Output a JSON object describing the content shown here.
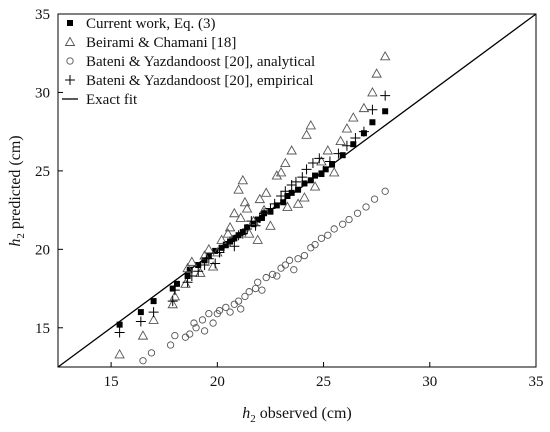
{
  "chart_data": {
    "type": "scatter",
    "xlabel_var": "h",
    "xlabel_sub": "2",
    "xlabel_rest": " observed (cm)",
    "ylabel_var": "h",
    "ylabel_sub": "2",
    "ylabel_rest": " predicted (cm)",
    "xlim": [
      12.5,
      35
    ],
    "ylim": [
      12.5,
      35
    ],
    "xticks": [
      15,
      20,
      25,
      30,
      35
    ],
    "yticks": [
      15,
      20,
      25,
      30,
      35
    ],
    "legend_position": "top-left",
    "series": [
      {
        "name": "Current work, Eq. (3)",
        "marker": "filled-square",
        "points": [
          [
            15.4,
            15.2
          ],
          [
            16.4,
            16.0
          ],
          [
            17.0,
            16.7
          ],
          [
            17.9,
            17.5
          ],
          [
            18.1,
            17.8
          ],
          [
            18.6,
            18.3
          ],
          [
            18.7,
            18.7
          ],
          [
            19.1,
            19.0
          ],
          [
            19.4,
            19.3
          ],
          [
            19.6,
            19.6
          ],
          [
            19.9,
            19.9
          ],
          [
            20.2,
            20.1
          ],
          [
            20.4,
            20.3
          ],
          [
            20.6,
            20.5
          ],
          [
            20.8,
            20.7
          ],
          [
            21.0,
            20.9
          ],
          [
            21.2,
            21.1
          ],
          [
            21.4,
            21.4
          ],
          [
            21.7,
            21.6
          ],
          [
            21.9,
            21.9
          ],
          [
            22.1,
            22.0
          ],
          [
            22.2,
            22.3
          ],
          [
            22.5,
            22.4
          ],
          [
            22.8,
            22.8
          ],
          [
            23.1,
            23.0
          ],
          [
            23.3,
            23.4
          ],
          [
            23.5,
            23.6
          ],
          [
            23.8,
            23.8
          ],
          [
            24.1,
            24.2
          ],
          [
            24.4,
            24.4
          ],
          [
            24.6,
            24.7
          ],
          [
            24.9,
            24.8
          ],
          [
            25.1,
            25.1
          ],
          [
            25.4,
            25.4
          ],
          [
            25.9,
            26.0
          ],
          [
            26.4,
            26.7
          ],
          [
            26.9,
            27.4
          ],
          [
            27.3,
            28.1
          ],
          [
            27.9,
            28.8
          ]
        ]
      },
      {
        "name": "Beirami & Chamani [18]",
        "marker": "open-triangle",
        "points": [
          [
            15.4,
            13.3
          ],
          [
            16.5,
            14.5
          ],
          [
            17.0,
            15.5
          ],
          [
            17.9,
            16.5
          ],
          [
            18.0,
            17.0
          ],
          [
            18.5,
            17.8
          ],
          [
            18.6,
            18.8
          ],
          [
            18.8,
            19.2
          ],
          [
            19.2,
            18.5
          ],
          [
            19.4,
            19.6
          ],
          [
            19.6,
            20.0
          ],
          [
            19.8,
            18.9
          ],
          [
            20.0,
            19.8
          ],
          [
            20.2,
            20.6
          ],
          [
            20.5,
            21.0
          ],
          [
            20.6,
            21.4
          ],
          [
            20.8,
            22.3
          ],
          [
            21.0,
            23.8
          ],
          [
            21.1,
            22.0
          ],
          [
            21.2,
            24.4
          ],
          [
            21.3,
            23.0
          ],
          [
            21.4,
            22.6
          ],
          [
            21.5,
            21.0
          ],
          [
            21.7,
            21.8
          ],
          [
            21.9,
            20.6
          ],
          [
            22.0,
            23.2
          ],
          [
            22.2,
            22.5
          ],
          [
            22.3,
            23.6
          ],
          [
            22.5,
            21.5
          ],
          [
            22.8,
            24.7
          ],
          [
            23.0,
            24.9
          ],
          [
            23.2,
            25.5
          ],
          [
            23.3,
            22.7
          ],
          [
            23.5,
            26.3
          ],
          [
            23.8,
            22.9
          ],
          [
            24.1,
            23.3
          ],
          [
            24.2,
            27.3
          ],
          [
            24.4,
            27.9
          ],
          [
            24.6,
            24.0
          ],
          [
            24.9,
            25.6
          ],
          [
            25.2,
            26.3
          ],
          [
            25.5,
            24.9
          ],
          [
            25.8,
            26.9
          ],
          [
            26.1,
            27.7
          ],
          [
            26.4,
            28.4
          ],
          [
            26.9,
            29.0
          ],
          [
            27.3,
            30.0
          ],
          [
            27.5,
            31.2
          ],
          [
            27.9,
            32.3
          ]
        ]
      },
      {
        "name": "Bateni & Yazdandoost [20], analytical",
        "marker": "open-circle",
        "points": [
          [
            16.5,
            12.9
          ],
          [
            16.9,
            13.4
          ],
          [
            17.8,
            13.9
          ],
          [
            18.0,
            14.5
          ],
          [
            18.5,
            14.4
          ],
          [
            18.7,
            14.6
          ],
          [
            18.9,
            15.3
          ],
          [
            19.0,
            15.0
          ],
          [
            19.3,
            15.5
          ],
          [
            19.4,
            14.8
          ],
          [
            19.6,
            15.9
          ],
          [
            19.8,
            15.3
          ],
          [
            20.0,
            15.9
          ],
          [
            20.1,
            16.1
          ],
          [
            20.4,
            16.3
          ],
          [
            20.6,
            16.0
          ],
          [
            20.8,
            16.5
          ],
          [
            21.0,
            16.7
          ],
          [
            21.1,
            16.2
          ],
          [
            21.3,
            17.0
          ],
          [
            21.5,
            17.3
          ],
          [
            21.8,
            17.5
          ],
          [
            21.9,
            17.9
          ],
          [
            22.1,
            17.4
          ],
          [
            22.3,
            18.2
          ],
          [
            22.6,
            18.4
          ],
          [
            22.8,
            18.3
          ],
          [
            23.0,
            18.8
          ],
          [
            23.2,
            19.0
          ],
          [
            23.4,
            19.3
          ],
          [
            23.6,
            18.7
          ],
          [
            23.8,
            19.4
          ],
          [
            24.1,
            19.6
          ],
          [
            24.4,
            20.1
          ],
          [
            24.6,
            20.3
          ],
          [
            24.9,
            20.7
          ],
          [
            25.2,
            20.9
          ],
          [
            25.5,
            21.3
          ],
          [
            25.9,
            21.6
          ],
          [
            26.2,
            21.9
          ],
          [
            26.6,
            22.3
          ],
          [
            27.0,
            22.7
          ],
          [
            27.4,
            23.2
          ],
          [
            27.9,
            23.7
          ]
        ]
      },
      {
        "name": "Bateni & Yazdandoost [20], empirical",
        "marker": "plus",
        "points": [
          [
            15.4,
            14.7
          ],
          [
            16.4,
            15.4
          ],
          [
            17.0,
            16.0
          ],
          [
            17.9,
            16.7
          ],
          [
            18.0,
            17.4
          ],
          [
            18.6,
            17.9
          ],
          [
            18.8,
            18.3
          ],
          [
            19.1,
            18.6
          ],
          [
            19.4,
            19.0
          ],
          [
            19.6,
            19.4
          ],
          [
            19.9,
            19.1
          ],
          [
            20.1,
            19.8
          ],
          [
            20.3,
            20.1
          ],
          [
            20.6,
            20.5
          ],
          [
            20.8,
            20.2
          ],
          [
            21.0,
            20.9
          ],
          [
            21.2,
            21.0
          ],
          [
            21.4,
            21.3
          ],
          [
            21.6,
            21.8
          ],
          [
            21.8,
            21.5
          ],
          [
            22.0,
            22.0
          ],
          [
            22.2,
            22.3
          ],
          [
            22.5,
            22.6
          ],
          [
            22.7,
            22.9
          ],
          [
            23.0,
            23.4
          ],
          [
            23.2,
            23.7
          ],
          [
            23.5,
            24.1
          ],
          [
            23.7,
            24.3
          ],
          [
            24.0,
            24.6
          ],
          [
            24.2,
            25.1
          ],
          [
            24.5,
            25.5
          ],
          [
            24.8,
            25.8
          ],
          [
            25.0,
            25.0
          ],
          [
            25.3,
            25.6
          ],
          [
            25.7,
            26.1
          ],
          [
            26.1,
            26.6
          ],
          [
            26.5,
            27.1
          ],
          [
            26.9,
            27.5
          ],
          [
            27.3,
            28.9
          ],
          [
            27.9,
            29.8
          ]
        ]
      },
      {
        "name": "Exact fit",
        "marker": "line",
        "points": [
          [
            12.5,
            12.5
          ],
          [
            35,
            35
          ]
        ]
      }
    ]
  }
}
